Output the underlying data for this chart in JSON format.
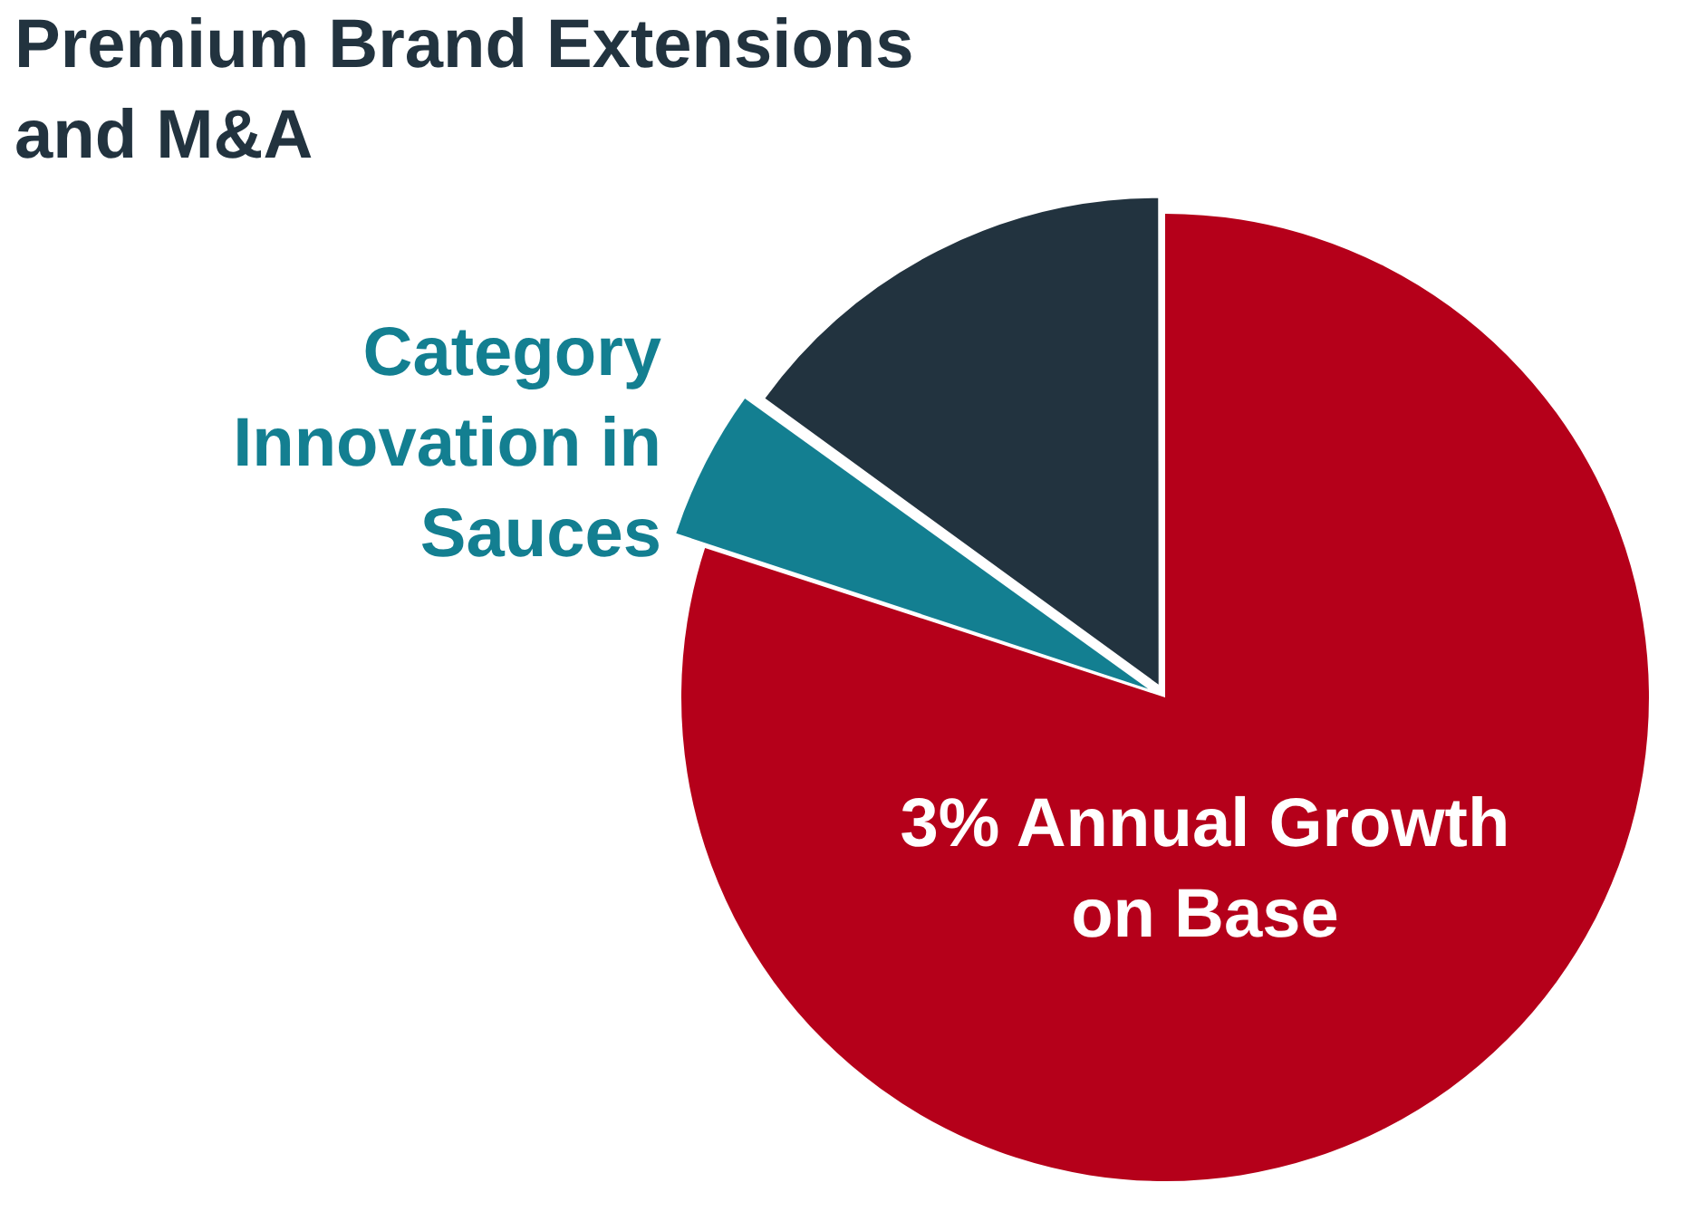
{
  "chart_data": {
    "type": "pie",
    "categories": [
      "3% Annual Growth on Base",
      "Category Innovation in Sauces",
      "Premium Brand Extensions and M&A"
    ],
    "values": [
      80,
      5,
      15
    ],
    "colors": [
      "#b5001a",
      "#137f91",
      "#22333f"
    ],
    "legend": false
  }
}
